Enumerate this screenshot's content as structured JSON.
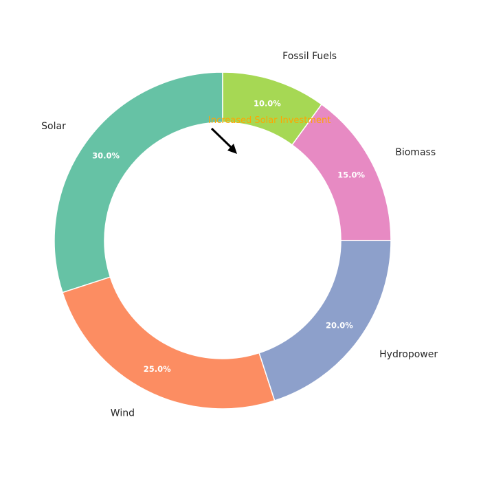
{
  "chart_data": {
    "type": "pie",
    "style": "donut",
    "categories": [
      "Solar",
      "Wind",
      "Hydropower",
      "Biomass",
      "Fossil Fuels"
    ],
    "values": [
      30,
      25,
      20,
      15,
      10
    ],
    "percent_labels": [
      "30.0%",
      "25.0%",
      "20.0%",
      "15.0%",
      "10.0%"
    ],
    "colors": [
      "#66c2a5",
      "#fc8d62",
      "#8da0cb",
      "#e78ac3",
      "#a6d854"
    ],
    "start_angle_deg": 90,
    "direction": "counterclockwise",
    "title": "",
    "annotation": {
      "text": "Increased Solar Investment",
      "color": "#ffa500",
      "arrow_color": "#000000"
    }
  }
}
